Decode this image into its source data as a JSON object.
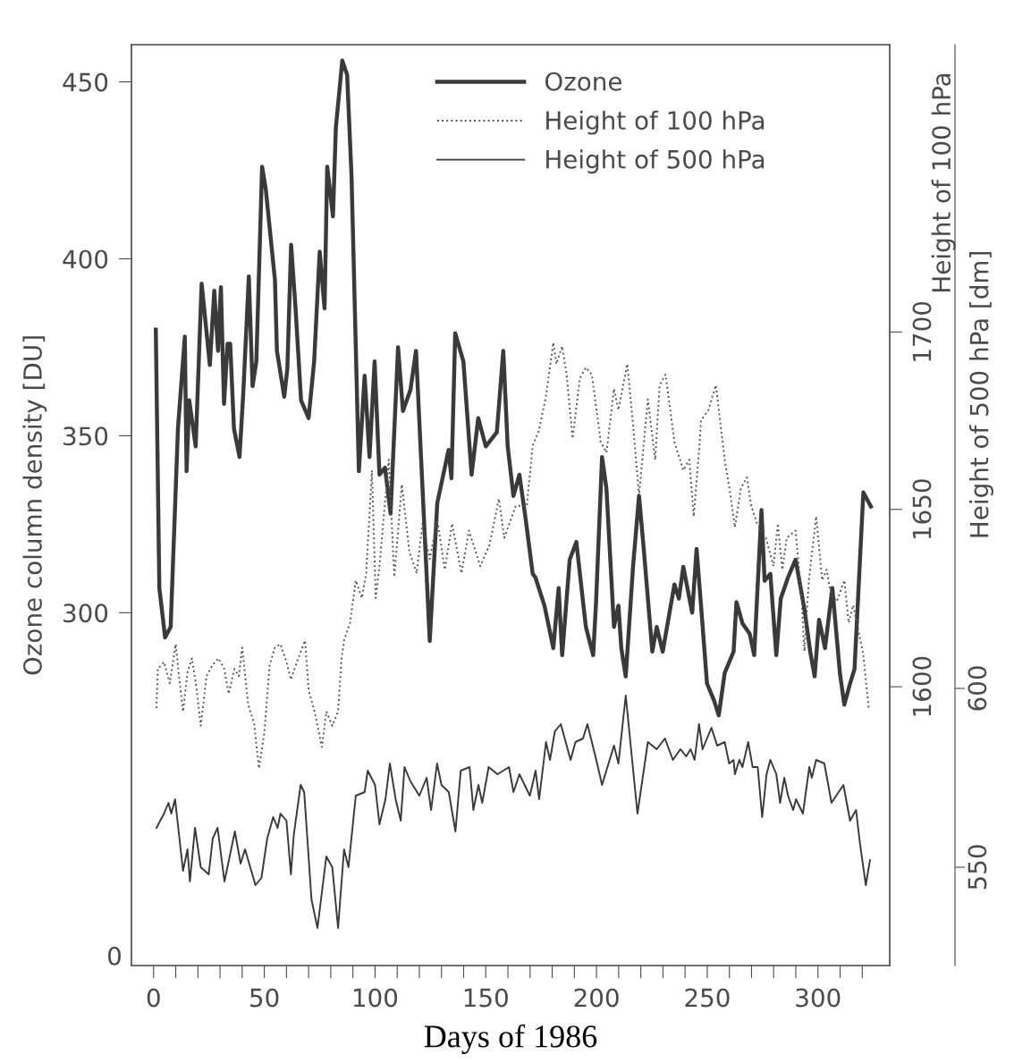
{
  "chart_data": {
    "type": "line",
    "xlabel": "Days of 1986",
    "ylabel": "Ozone column density [DU]",
    "y2label": "Height of 100 hPa",
    "y3label": "Height of 500 hPa [dm]",
    "xlim": [
      -10,
      332.4
    ],
    "xticks": [
      0,
      {
        "value": 10,
        "label": null
      },
      {
        "value": 20,
        "label": null
      },
      {
        "value": 30,
        "label": null
      },
      {
        "value": 40,
        "label": null
      },
      50,
      {
        "value": 60,
        "label": null
      },
      {
        "value": 70,
        "label": null
      },
      {
        "value": 80,
        "label": null
      },
      {
        "value": 90,
        "label": null
      },
      100,
      {
        "value": 110,
        "label": null
      },
      {
        "value": 120,
        "label": null
      },
      {
        "value": 130,
        "label": null
      },
      {
        "value": 140,
        "label": null
      },
      150,
      {
        "value": 160,
        "label": null
      },
      {
        "value": 170,
        "label": null
      },
      {
        "value": 180,
        "label": null
      },
      {
        "value": 190,
        "label": null
      },
      200,
      {
        "value": 210,
        "label": null
      },
      {
        "value": 220,
        "label": null
      },
      {
        "value": 230,
        "label": null
      },
      {
        "value": 240,
        "label": null
      },
      250,
      {
        "value": 260,
        "label": null
      },
      {
        "value": 270,
        "label": null
      },
      {
        "value": 280,
        "label": null
      },
      {
        "value": 290,
        "label": null
      },
      300,
      {
        "value": 310,
        "label": null
      },
      {
        "value": 320,
        "label": null
      }
    ],
    "ylim": [
      200.3,
      460.5
    ],
    "yticks": [
      300,
      350,
      400,
      450
    ],
    "annotations": [
      "0"
    ],
    "y2lim": [
      1521.4,
      1781
    ],
    "y2ticks": [
      1600,
      1650,
      1700
    ],
    "y3lim": [
      522.5,
      780
    ],
    "y3ticks": [
      550,
      600
    ],
    "legend": "top",
    "grid": false,
    "series": [
      {
        "name": "Ozone",
        "color": "#3a3a3a",
        "line_style": "solid",
        "x": [
          1.0,
          2.6,
          5.2,
          7.7,
          11.0,
          14.1,
          14.9,
          16.1,
          19.0,
          21.7,
          25.4,
          27.4,
          29.1,
          30.4,
          31.8,
          33.4,
          34.6,
          36.3,
          38.8,
          40.5,
          43.0,
          44.7,
          46.4,
          49.0,
          50.6,
          54.8,
          55.7,
          59.0,
          60.4,
          62.1,
          64.1,
          66.6,
          70.0,
          72.5,
          75.0,
          77.2,
          78.4,
          81.0,
          82.3,
          85.2,
          87.4,
          89.4,
          92.7,
          95.3,
          97.5,
          99.8,
          102.0,
          104.5,
          107.0,
          110.4,
          112.6,
          116.0,
          118.5,
          124.7,
          128.1,
          133.2,
          134.5,
          136.2,
          139.9,
          143.6,
          146.6,
          150.0,
          155.0,
          157.9,
          159.9,
          162.5,
          165.2,
          167.9,
          171.2,
          172.4,
          176.5,
          180.5,
          182.9,
          184.5,
          187.9,
          190.9,
          195.2,
          198.5,
          199.8,
          202.5,
          204.5,
          207.9,
          209.9,
          211.2,
          213.2,
          216.5,
          219.2,
          221.2,
          225.2,
          227.2,
          229.9,
          235.2,
          237.2,
          239.2,
          243.2,
          245.2,
          247.2,
          249.9,
          253.2,
          255.2,
          257.9,
          261.9,
          263.2,
          265.9,
          269.2,
          271.2,
          274.5,
          275.9,
          278.5,
          281.2,
          283.2,
          286.5,
          289.9,
          293.9,
          296.5,
          298.5,
          300.5,
          303.2,
          306.5,
          309.9,
          311.9,
          314.5,
          316.5,
          320.5,
          323.9
        ],
        "values": [
          380,
          307,
          293,
          296,
          352,
          378,
          340,
          360,
          347,
          393,
          370,
          391,
          374,
          392,
          359,
          376,
          376,
          352,
          344,
          362,
          395,
          364,
          371,
          426,
          420,
          394,
          374,
          361,
          369,
          404,
          386,
          360,
          355,
          371,
          402,
          386,
          426,
          412,
          437,
          456,
          452,
          423,
          340,
          367,
          344,
          371,
          339,
          341,
          328,
          375,
          357,
          363,
          374,
          292,
          331,
          346,
          338,
          379,
          371,
          339,
          355,
          347,
          351,
          374,
          347,
          333,
          339,
          327,
          311,
          310,
          302,
          290,
          307,
          288,
          315,
          320,
          296,
          288,
          303,
          344,
          335,
          296,
          302,
          290,
          282,
          313,
          333,
          319,
          289,
          296,
          289,
          308,
          304,
          313,
          300,
          318,
          302,
          280,
          275,
          271,
          283,
          289,
          303,
          297,
          294,
          288,
          329,
          309,
          311,
          288,
          304,
          310,
          315,
          301,
          289,
          282,
          298,
          290,
          307,
          283,
          274,
          280,
          284,
          334,
          330
        ]
      },
      {
        "name": "Height of 100 hPa",
        "color": "#555555",
        "line_style": "dotted",
        "axis": "y2",
        "x": [
          1.3,
          1.9,
          4.7,
          7.3,
          10.0,
          11.3,
          13.3,
          15.3,
          17.3,
          19.3,
          21.3,
          23.9,
          26.5,
          29.3,
          31.9,
          33.9,
          36.5,
          38.5,
          40.0,
          42.7,
          45.3,
          47.6,
          50.0,
          52.4,
          54.7,
          57.3,
          60.0,
          62.0,
          65.3,
          68.4,
          70.0,
          72.7,
          76.0,
          78.0,
          80.7,
          83.3,
          84.9,
          86.0,
          88.7,
          91.3,
          94.0,
          96.0,
          98.6,
          100.3,
          102.0,
          106.2,
          108.7,
          112.1,
          115.5,
          118.8,
          121.4,
          124.7,
          128.1,
          131.5,
          134.8,
          139.0,
          142.4,
          147.5,
          151.7,
          155.9,
          158.4,
          163.5,
          168.5,
          171.2,
          173.9,
          177.2,
          180.5,
          181.9,
          184.5,
          186.5,
          189.2,
          192.5,
          195.2,
          197.9,
          201.9,
          204.5,
          207.9,
          209.9,
          213.9,
          216.5,
          219.2,
          223.2,
          226.5,
          228.5,
          231.2,
          235.2,
          239.2,
          241.9,
          243.9,
          246.5,
          247.2,
          250.5,
          253.9,
          257.9,
          260.5,
          262.5,
          265.2,
          267.9,
          269.9,
          272.5,
          276.5,
          279.9,
          281.9,
          283.9,
          285.9,
          289.9,
          292.5,
          293.9,
          295.9,
          299.2,
          301.9,
          303.9,
          305.9,
          308.5,
          311.9,
          313.9,
          315.9,
          317.9,
          320.5,
          322.9
        ],
        "values": [
          1594,
          1605,
          1607,
          1601,
          1612,
          1604,
          1593,
          1604,
          1608,
          1600,
          1589,
          1603,
          1606,
          1608,
          1605,
          1598,
          1605,
          1603,
          1611,
          1595,
          1590,
          1577,
          1587,
          1606,
          1611,
          1612,
          1607,
          1602,
          1608,
          1613,
          1599,
          1593,
          1583,
          1593,
          1589,
          1593,
          1608,
          1613,
          1618,
          1630,
          1625,
          1632,
          1661,
          1625,
          1634,
          1664,
          1631,
          1657,
          1638,
          1632,
          1646,
          1636,
          1647,
          1633,
          1646,
          1632,
          1644,
          1634,
          1640,
          1653,
          1642,
          1651,
          1651,
          1668,
          1672,
          1682,
          1697,
          1691,
          1696,
          1688,
          1670,
          1687,
          1690,
          1688,
          1669,
          1666,
          1684,
          1678,
          1691,
          1674,
          1654,
          1681,
          1664,
          1685,
          1688,
          1669,
          1661,
          1664,
          1648,
          1668,
          1675,
          1678,
          1685,
          1664,
          1654,
          1645,
          1656,
          1659,
          1651,
          1646,
          1642,
          1634,
          1646,
          1633,
          1642,
          1644,
          1626,
          1610,
          1630,
          1648,
          1630,
          1633,
          1626,
          1624,
          1630,
          1618,
          1623,
          1617,
          1609,
          1594
        ]
      },
      {
        "name": "Height of 500 hPa",
        "color": "#3a3a3a",
        "line_style": "solid",
        "axis": "y3",
        "x": [
          1.3,
          4.7,
          6.7,
          8.0,
          9.7,
          13.3,
          15.3,
          16.4,
          18.7,
          21.3,
          24.9,
          26.7,
          28.9,
          32.0,
          36.7,
          39.3,
          41.3,
          46.0,
          48.7,
          51.3,
          54.0,
          56.0,
          57.3,
          60.0,
          62.0,
          63.3,
          66.4,
          68.0,
          71.3,
          74.0,
          78.0,
          80.7,
          83.3,
          86.0,
          88.0,
          91.3,
          95.3,
          96.7,
          100.0,
          102.0,
          104.7,
          106.7,
          109.3,
          111.6,
          113.3,
          116.0,
          120.0,
          123.3,
          125.3,
          128.0,
          130.0,
          133.3,
          136.3,
          138.7,
          142.7,
          144.4,
          146.7,
          148.4,
          151.3,
          155.3,
          160.5,
          162.5,
          165.2,
          169.9,
          172.5,
          174.1,
          177.2,
          179.0,
          181.2,
          183.9,
          186.1,
          188.3,
          190.5,
          193.9,
          195.9,
          199.9,
          202.5,
          207.9,
          209.9,
          213.2,
          218.5,
          223.2,
          227.2,
          230.9,
          234.5,
          237.9,
          240.5,
          242.5,
          244.3,
          246.3,
          247.9,
          251.9,
          254.5,
          257.9,
          259.9,
          261.9,
          262.5,
          264.5,
          265.9,
          268.5,
          270.5,
          272.8,
          274.8,
          276.8,
          278.5,
          281.2,
          282.9,
          284.8,
          286.5,
          288.8,
          290.1,
          293.2,
          296.1,
          297.2,
          299.2,
          302.9,
          306.1,
          311.5,
          314.5,
          317.2,
          318.9,
          321.6,
          323.5
        ],
        "values": [
          561,
          565,
          568,
          565,
          569,
          549,
          555,
          546,
          561,
          550,
          548,
          558,
          561,
          546,
          560,
          551,
          555,
          545,
          547,
          558,
          564,
          561,
          565,
          563,
          548,
          559,
          573,
          571,
          541,
          533,
          553,
          550,
          533,
          555,
          550,
          570,
          571,
          577,
          573,
          562,
          569,
          579,
          569,
          563,
          578,
          574,
          570,
          575,
          566,
          579,
          573,
          571,
          560,
          577,
          578,
          566,
          573,
          568,
          578,
          576,
          578,
          571,
          576,
          570,
          577,
          569,
          585,
          580,
          588,
          590,
          585,
          580,
          585,
          586,
          590,
          580,
          573,
          584,
          579,
          598,
          565,
          585,
          583,
          586,
          580,
          583,
          581,
          583,
          580,
          590,
          583,
          589,
          584,
          585,
          579,
          580,
          576,
          580,
          578,
          585,
          578,
          578,
          564,
          576,
          580,
          576,
          568,
          575,
          570,
          566,
          569,
          565,
          578,
          575,
          580,
          579,
          568,
          573,
          563,
          566,
          557,
          545,
          552
        ]
      }
    ]
  }
}
